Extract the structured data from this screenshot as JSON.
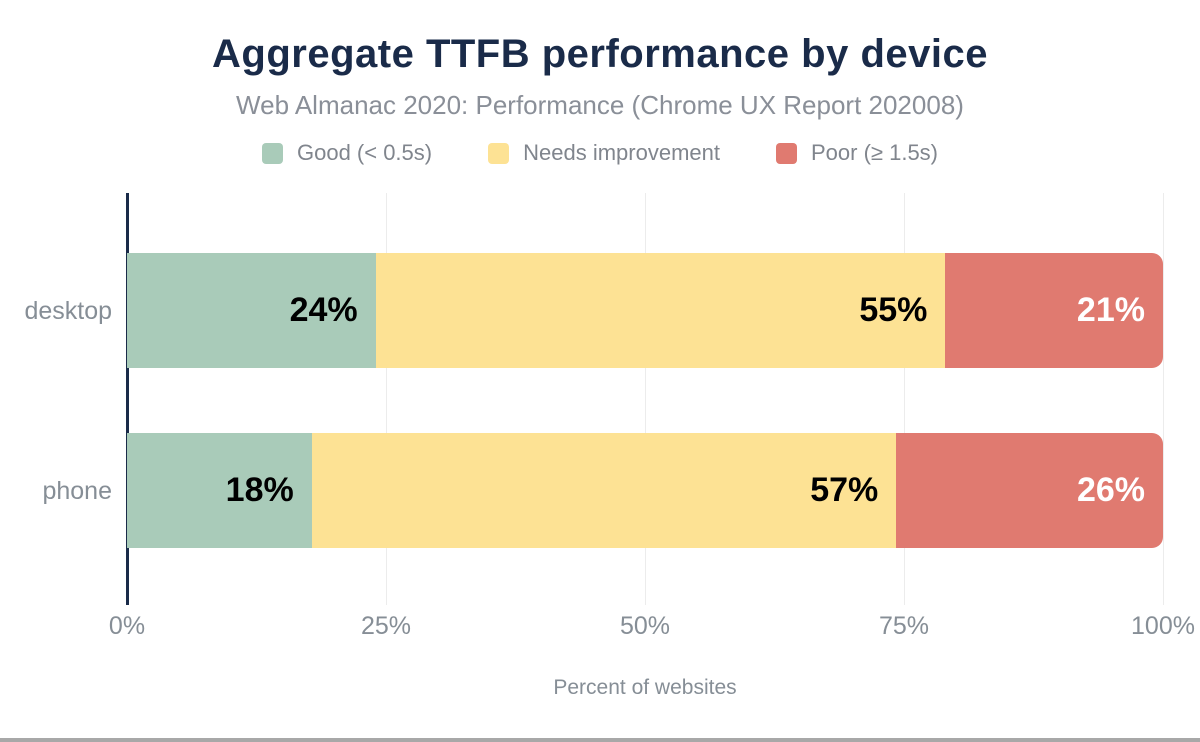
{
  "colors": {
    "title_text": "#1a2b49",
    "muted_text": "#868e96",
    "axis_line": "#1a2b49",
    "gridline": "#ececec",
    "good": "#a9cbb9",
    "needs_improvement": "#fde294",
    "poor": "#e07a70",
    "bottom_rule": "#a8a8a8"
  },
  "chart_data": {
    "type": "bar",
    "orientation": "horizontal",
    "stacked": true,
    "title": "Aggregate TTFB performance by device",
    "subtitle": "Web Almanac 2020: Performance (Chrome UX Report 202008)",
    "xlabel": "Percent of websites",
    "ylabel": "",
    "categories": [
      "desktop",
      "phone"
    ],
    "series": [
      {
        "name": "Good (< 0.5s)",
        "color": "#a9cbb9",
        "label_color": "#000000",
        "values": [
          24,
          18
        ]
      },
      {
        "name": "Needs improvement",
        "color": "#fde294",
        "label_color": "#000000",
        "values": [
          55,
          57
        ]
      },
      {
        "name": "Poor (≥ 1.5s)",
        "color": "#e07a70",
        "label_color": "#ffffff",
        "values": [
          21,
          26
        ]
      }
    ],
    "value_label_format": "{value}%",
    "x_ticks": [
      {
        "label": "0%",
        "value": 0
      },
      {
        "label": "25%",
        "value": 25
      },
      {
        "label": "50%",
        "value": 50
      },
      {
        "label": "75%",
        "value": 75
      },
      {
        "label": "100%",
        "value": 100
      }
    ],
    "xlim": [
      0,
      100
    ],
    "grid": "vertical",
    "legend_position": "top"
  }
}
